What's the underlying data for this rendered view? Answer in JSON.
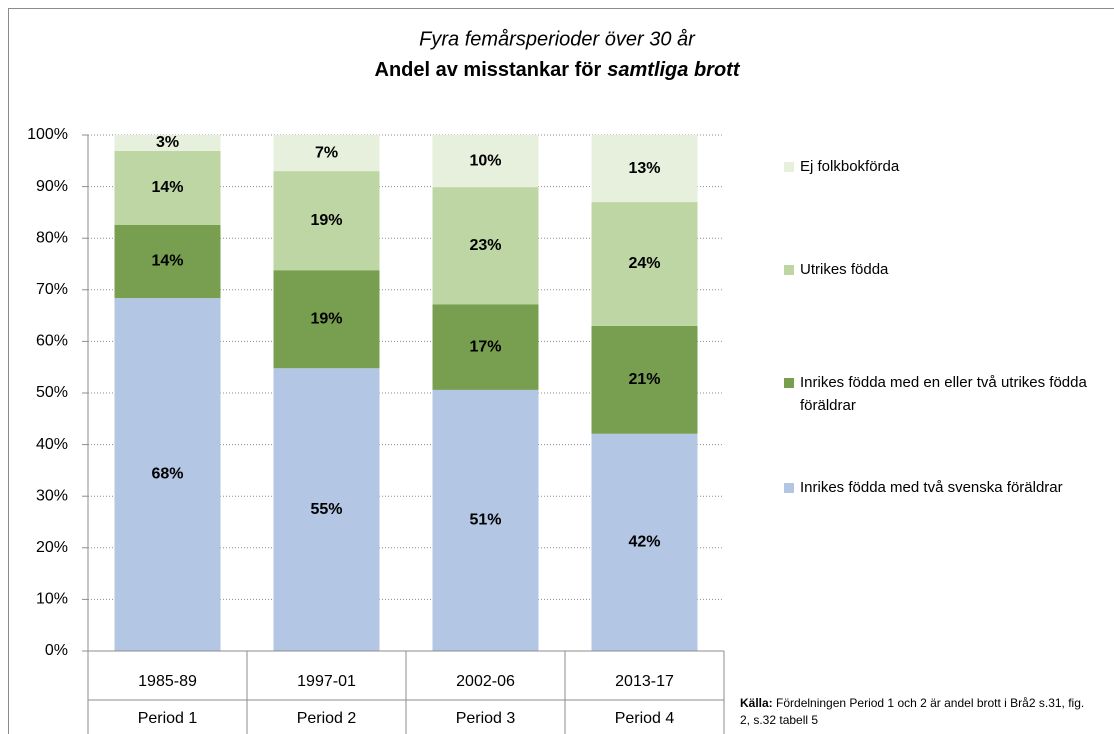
{
  "chart_data": {
    "type": "stacked_bar",
    "subtitle": "Fyra femårsperioder över 30 år",
    "title": "Andel av misstankar för",
    "title_emphasis": "samtliga brott",
    "categories": [
      "1985-89",
      "1997-01",
      "2002-06",
      "2013-17"
    ],
    "periods": [
      "Period 1",
      "Period 2",
      "Period 3",
      "Period 4"
    ],
    "series": [
      {
        "name": "Inrikes födda med två svenska föräldrar",
        "color": "#b3c6e4",
        "values": [
          68.4,
          54.8,
          50.6,
          42.1
        ],
        "value_labels": [
          "68%",
          "55%",
          "51%",
          "42%"
        ]
      },
      {
        "name": "Inrikes födda med en eller två utrikes födda föräldrar",
        "color": "#789f50",
        "values": [
          14.2,
          19.0,
          16.6,
          20.9
        ],
        "value_labels": [
          "14%",
          "19%",
          "17%",
          "21%"
        ]
      },
      {
        "name": "Utrikes födda",
        "color": "#bdd6a4",
        "values": [
          14.3,
          19.2,
          22.7,
          24.0
        ],
        "value_labels": [
          "14%",
          "19%",
          "23%",
          "24%"
        ]
      },
      {
        "name": "Ej folkbokförda",
        "color": "#e7f0dd",
        "values": [
          3.1,
          7.0,
          10.1,
          13.0
        ],
        "value_labels": [
          "3%",
          "7%",
          "10%",
          "13%"
        ]
      }
    ],
    "ylim": [
      0,
      100
    ],
    "yticks": [
      {
        "value": 0,
        "label": "0%"
      },
      {
        "value": 10,
        "label": "10%"
      },
      {
        "value": 20,
        "label": "20%"
      },
      {
        "value": 30,
        "label": "30%"
      },
      {
        "value": 40,
        "label": "40%"
      },
      {
        "value": 50,
        "label": "50%"
      },
      {
        "value": 60,
        "label": "60%"
      },
      {
        "value": 70,
        "label": "70%"
      },
      {
        "value": 80,
        "label": "80%"
      },
      {
        "value": 90,
        "label": "90%"
      },
      {
        "value": 100,
        "label": "100%"
      }
    ],
    "grid": true,
    "source_label": "Källa:",
    "source": "Fördelningen Period 1 och 2 är andel brott i Brå2 s.31, fig. 2, s.32 tabell 5"
  }
}
